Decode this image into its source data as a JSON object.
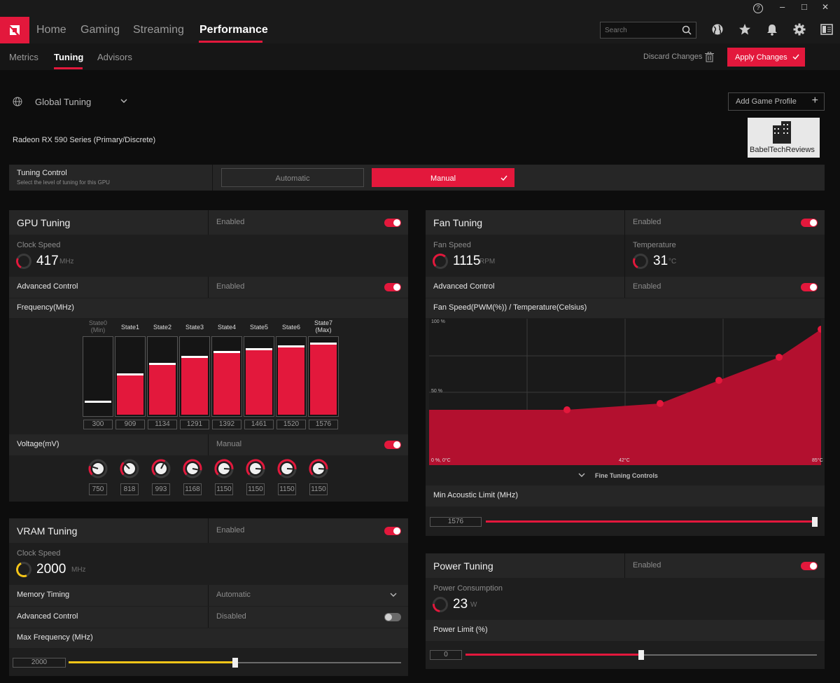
{
  "titlebar": {
    "help": "?",
    "minimize": "–",
    "maximize": "□",
    "close": "✕"
  },
  "nav": {
    "tabs": [
      "Home",
      "Gaming",
      "Streaming",
      "Performance"
    ],
    "active": "Performance",
    "search_placeholder": "Search"
  },
  "subnav": {
    "tabs": [
      "Metrics",
      "Tuning",
      "Advisors"
    ],
    "active": "Tuning",
    "discard": "Discard Changes",
    "apply": "Apply Changes"
  },
  "profile": {
    "name": "Global Tuning",
    "add_game_profile": "Add Game Profile",
    "gpu_name": "Radeon RX 590 Series (Primary/Discrete)",
    "watermark": "BabelTechReviews"
  },
  "tuning_control": {
    "title": "Tuning Control",
    "subtitle": "Select the level of tuning for this GPU",
    "automatic": "Automatic",
    "manual": "Manual"
  },
  "gpu_tuning": {
    "title": "GPU Tuning",
    "status": "Enabled",
    "clock_label": "Clock Speed",
    "clock_value": "417",
    "clock_unit": "MHz",
    "advanced_label": "Advanced Control",
    "advanced_status": "Enabled",
    "frequency_label": "Frequency(MHz)",
    "states": [
      {
        "label": "State0",
        "sub": "(Min)",
        "value": "300"
      },
      {
        "label": "State1",
        "sub": "",
        "value": "909"
      },
      {
        "label": "State2",
        "sub": "",
        "value": "1134"
      },
      {
        "label": "State3",
        "sub": "",
        "value": "1291"
      },
      {
        "label": "State4",
        "sub": "",
        "value": "1392"
      },
      {
        "label": "State5",
        "sub": "",
        "value": "1461"
      },
      {
        "label": "State6",
        "sub": "",
        "value": "1520"
      },
      {
        "label": "State7",
        "sub": "(Max)",
        "value": "1576"
      }
    ],
    "voltage_label": "Voltage(mV)",
    "voltage_status": "Manual",
    "voltages": [
      "750",
      "818",
      "993",
      "1168",
      "1150",
      "1150",
      "1150",
      "1150"
    ]
  },
  "vram_tuning": {
    "title": "VRAM Tuning",
    "status": "Enabled",
    "clock_label": "Clock Speed",
    "clock_value": "2000",
    "clock_unit": "MHz",
    "memory_timing_label": "Memory Timing",
    "memory_timing_value": "Automatic",
    "advanced_label": "Advanced Control",
    "advanced_status": "Disabled",
    "max_freq_label": "Max Frequency (MHz)",
    "max_freq_value": "2000",
    "max_freq_fraction": 0.5
  },
  "fan_tuning": {
    "title": "Fan Tuning",
    "status": "Enabled",
    "fan_speed_label": "Fan Speed",
    "fan_speed_value": "1115",
    "fan_speed_unit": "RPM",
    "temp_label": "Temperature",
    "temp_value": "31",
    "temp_unit": "°C",
    "advanced_label": "Advanced Control",
    "advanced_status": "Enabled",
    "curve_label": "Fan Speed(PWM(%)) / Temperature(Celsius)",
    "y_top": "100 %",
    "y_mid": "50 %",
    "y_bottom": "0 %, 0°C",
    "x_mid": "42°C",
    "x_right": "85°C",
    "fine_tuning": "Fine Tuning Controls",
    "min_acoustic_label": "Min Acoustic Limit (MHz)",
    "min_acoustic_value": "1576",
    "min_acoustic_fraction": 1.0
  },
  "power_tuning": {
    "title": "Power Tuning",
    "status": "Enabled",
    "consumption_label": "Power Consumption",
    "consumption_value": "23",
    "consumption_unit": "W",
    "limit_label": "Power Limit (%)",
    "limit_value": "0",
    "limit_fraction": 0.5
  },
  "colors": {
    "accent": "#e3183c",
    "vram_accent": "#f5c518",
    "bg": "#0d0d0d",
    "panel": "#1e1e1e"
  }
}
